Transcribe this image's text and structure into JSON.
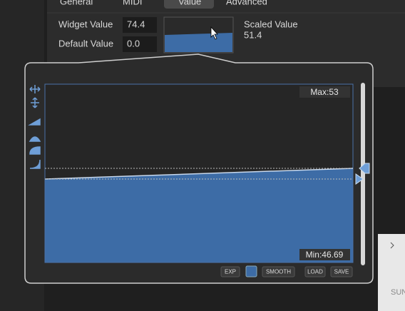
{
  "tabs": [
    "General",
    "MIDI",
    "Value",
    "Advanced"
  ],
  "fields": {
    "widget_value": {
      "label": "Widget Value",
      "value": "74.4"
    },
    "default_value": {
      "label": "Default Value",
      "value": "0.0"
    },
    "scaled_value": {
      "label": "Scaled Value",
      "value": "51.4"
    }
  },
  "graph": {
    "max_label": "Max:53",
    "min_label": "Min:46.69"
  },
  "buttons": [
    "EXP",
    "SMOOTH",
    "LOAD",
    "SAVE"
  ],
  "sidebar": {
    "label": "SUN"
  }
}
